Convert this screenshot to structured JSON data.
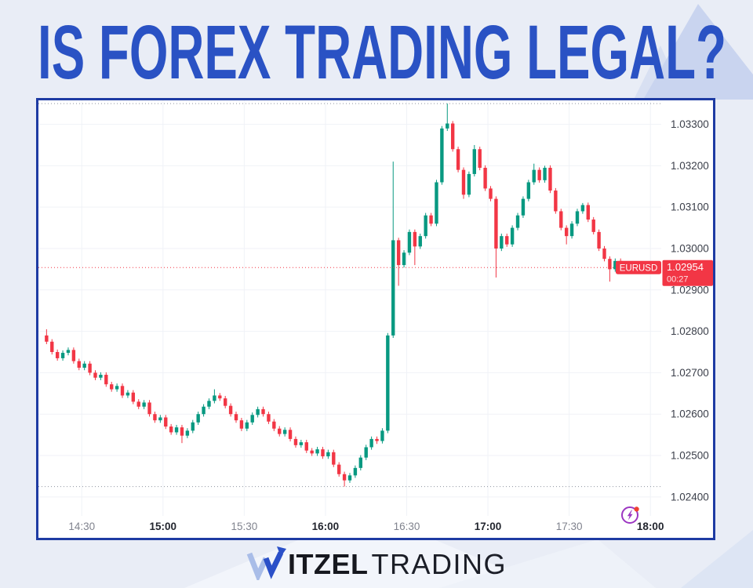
{
  "title": "IS FOREX TRADING LEGAL?",
  "brand": {
    "itzel": "ITZEL",
    "trading": "TRADING"
  },
  "chart_data": {
    "type": "candlestick",
    "symbol": "EURUSD",
    "last_price": "1.02954",
    "bar_countdown": "00:27",
    "session_high": 1.0335,
    "session_low": 1.02425,
    "start_time": "14:17",
    "interval_minutes": 2,
    "y_axis": {
      "top": 1.03356,
      "bottom": 1.02358
    },
    "y_ticks": [
      {
        "label": "1.03300",
        "value": 1.033
      },
      {
        "label": "1.03200",
        "value": 1.032
      },
      {
        "label": "1.03100",
        "value": 1.031
      },
      {
        "label": "1.03000",
        "value": 1.03
      },
      {
        "label": "1.02900",
        "value": 1.029
      },
      {
        "label": "1.02800",
        "value": 1.028
      },
      {
        "label": "1.02700",
        "value": 1.027
      },
      {
        "label": "1.02600",
        "value": 1.026
      },
      {
        "label": "1.02500",
        "value": 1.025
      },
      {
        "label": "1.02400",
        "value": 1.024
      }
    ],
    "x_ticks": [
      {
        "label": "14:30",
        "minute": 13,
        "major": false
      },
      {
        "label": "15:00",
        "minute": 43,
        "major": true
      },
      {
        "label": "15:30",
        "minute": 73,
        "major": false
      },
      {
        "label": "16:00",
        "minute": 103,
        "major": true
      },
      {
        "label": "16:30",
        "minute": 133,
        "major": false
      },
      {
        "label": "17:00",
        "minute": 163,
        "major": true
      },
      {
        "label": "17:30",
        "minute": 193,
        "major": false
      },
      {
        "label": "18:00",
        "minute": 223,
        "major": true
      }
    ],
    "colors": {
      "up": "#089981",
      "down": "#f23645",
      "accent": "#f23645"
    },
    "candles": [
      [
        1.0279,
        1.02805,
        1.02769,
        1.02775
      ],
      [
        1.02775,
        1.02781,
        1.02744,
        1.0275
      ],
      [
        1.0275,
        1.02756,
        1.02729,
        1.02735
      ],
      [
        1.02735,
        1.02754,
        1.02729,
        1.02748
      ],
      [
        1.02748,
        1.02761,
        1.02742,
        1.02755
      ],
      [
        1.02755,
        1.02761,
        1.02722,
        1.02728
      ],
      [
        1.02728,
        1.02734,
        1.02706,
        1.02712
      ],
      [
        1.02712,
        1.02728,
        1.02706,
        1.02722
      ],
      [
        1.02722,
        1.02728,
        1.02694,
        1.027
      ],
      [
        1.027,
        1.02706,
        1.02682,
        1.02688
      ],
      [
        1.02688,
        1.02701,
        1.02682,
        1.02695
      ],
      [
        1.02695,
        1.02701,
        1.02666,
        1.02672
      ],
      [
        1.02672,
        1.02678,
        1.02654,
        1.0266
      ],
      [
        1.0266,
        1.02674,
        1.02654,
        1.02668
      ],
      [
        1.02668,
        1.02674,
        1.02639,
        1.02645
      ],
      [
        1.02645,
        1.02658,
        1.02639,
        1.02652
      ],
      [
        1.02652,
        1.02658,
        1.02624,
        1.0263
      ],
      [
        1.0263,
        1.02636,
        1.02612,
        1.02618
      ],
      [
        1.02618,
        1.02634,
        1.02612,
        1.02628
      ],
      [
        1.02628,
        1.02634,
        1.02594,
        1.026
      ],
      [
        1.026,
        1.02606,
        1.02579,
        1.02585
      ],
      [
        1.02585,
        1.02598,
        1.02579,
        1.02592
      ],
      [
        1.02592,
        1.02598,
        1.02564,
        1.0257
      ],
      [
        1.0257,
        1.02576,
        1.0255,
        1.02556
      ],
      [
        1.02556,
        1.02574,
        1.0255,
        1.02568
      ],
      [
        1.02568,
        1.02574,
        1.0253,
        1.02548
      ],
      [
        1.02548,
        1.02566,
        1.02542,
        1.0256
      ],
      [
        1.0256,
        1.02586,
        1.02554,
        1.0258
      ],
      [
        1.0258,
        1.02606,
        1.02574,
        1.026
      ],
      [
        1.026,
        1.02624,
        1.02594,
        1.02618
      ],
      [
        1.02618,
        1.02638,
        1.02612,
        1.02632
      ],
      [
        1.02632,
        1.0266,
        1.02626,
        1.02645
      ],
      [
        1.02645,
        1.02651,
        1.02632,
        1.02638
      ],
      [
        1.02638,
        1.02644,
        1.02614,
        1.0262
      ],
      [
        1.0262,
        1.02626,
        1.02594,
        1.026
      ],
      [
        1.026,
        1.02606,
        1.02579,
        1.02585
      ],
      [
        1.02585,
        1.02591,
        1.02559,
        1.02565
      ],
      [
        1.02565,
        1.02586,
        1.02559,
        1.0258
      ],
      [
        1.0258,
        1.02604,
        1.02574,
        1.02598
      ],
      [
        1.02598,
        1.02618,
        1.02592,
        1.02612
      ],
      [
        1.02612,
        1.02618,
        1.02594,
        1.026
      ],
      [
        1.026,
        1.02606,
        1.02576,
        1.02582
      ],
      [
        1.02582,
        1.02588,
        1.02559,
        1.02565
      ],
      [
        1.02565,
        1.02571,
        1.02546,
        1.02552
      ],
      [
        1.02552,
        1.02568,
        1.02546,
        1.02562
      ],
      [
        1.02562,
        1.02568,
        1.02534,
        1.0254
      ],
      [
        1.0254,
        1.02546,
        1.02519,
        1.02525
      ],
      [
        1.02525,
        1.02538,
        1.02519,
        1.02532
      ],
      [
        1.02532,
        1.02538,
        1.02506,
        1.02512
      ],
      [
        1.02512,
        1.02518,
        1.02499,
        1.02505
      ],
      [
        1.02505,
        1.02521,
        1.02499,
        1.02515
      ],
      [
        1.02515,
        1.02521,
        1.02492,
        1.02498
      ],
      [
        1.02498,
        1.02514,
        1.02492,
        1.02508
      ],
      [
        1.02508,
        1.02514,
        1.02472,
        1.02478
      ],
      [
        1.02478,
        1.02484,
        1.02449,
        1.02455
      ],
      [
        1.02455,
        1.02461,
        1.02425,
        1.0244
      ],
      [
        1.0244,
        1.02458,
        1.02434,
        1.02452
      ],
      [
        1.02452,
        1.02476,
        1.02446,
        1.0247
      ],
      [
        1.0247,
        1.02501,
        1.02464,
        1.02495
      ],
      [
        1.02495,
        1.02526,
        1.02489,
        1.0252
      ],
      [
        1.0252,
        1.02546,
        1.02514,
        1.0254
      ],
      [
        1.0254,
        1.02546,
        1.02528,
        1.02535
      ],
      [
        1.02535,
        1.02566,
        1.02529,
        1.0256
      ],
      [
        1.0256,
        1.02796,
        1.02554,
        1.0279
      ],
      [
        1.0279,
        1.0321,
        1.02784,
        1.0302
      ],
      [
        1.0302,
        1.03026,
        1.0291,
        1.0296
      ],
      [
        1.0296,
        1.02996,
        1.02954,
        1.0299
      ],
      [
        1.0299,
        1.03046,
        1.02984,
        1.0304
      ],
      [
        1.0304,
        1.03046,
        1.0296,
        1.03005
      ],
      [
        1.03005,
        1.03036,
        1.02999,
        1.0303
      ],
      [
        1.0303,
        1.03086,
        1.03024,
        1.0308
      ],
      [
        1.0308,
        1.03086,
        1.03054,
        1.0306
      ],
      [
        1.0306,
        1.03166,
        1.03054,
        1.0316
      ],
      [
        1.0316,
        1.03296,
        1.03154,
        1.0329
      ],
      [
        1.0329,
        1.0335,
        1.03284,
        1.03302
      ],
      [
        1.03302,
        1.03308,
        1.03234,
        1.0324
      ],
      [
        1.0324,
        1.03246,
        1.03184,
        1.0319
      ],
      [
        1.0319,
        1.03196,
        1.0312,
        1.0313
      ],
      [
        1.0313,
        1.03186,
        1.03124,
        1.0318
      ],
      [
        1.0318,
        1.0325,
        1.03174,
        1.0324
      ],
      [
        1.0324,
        1.03246,
        1.03189,
        1.03195
      ],
      [
        1.03195,
        1.03201,
        1.03139,
        1.03145
      ],
      [
        1.03145,
        1.03151,
        1.03114,
        1.0312
      ],
      [
        1.0312,
        1.03126,
        1.0293,
        1.03
      ],
      [
        1.03,
        1.03036,
        1.02994,
        1.0303
      ],
      [
        1.0303,
        1.03036,
        1.03004,
        1.0301
      ],
      [
        1.0301,
        1.03056,
        1.03004,
        1.0305
      ],
      [
        1.0305,
        1.03086,
        1.03044,
        1.0308
      ],
      [
        1.0308,
        1.03126,
        1.03074,
        1.0312
      ],
      [
        1.0312,
        1.03166,
        1.03114,
        1.0316
      ],
      [
        1.0316,
        1.03205,
        1.03154,
        1.0319
      ],
      [
        1.0319,
        1.03196,
        1.03159,
        1.03165
      ],
      [
        1.03165,
        1.032,
        1.03159,
        1.03195
      ],
      [
        1.03195,
        1.03201,
        1.03134,
        1.0314
      ],
      [
        1.0314,
        1.03146,
        1.03084,
        1.0309
      ],
      [
        1.0309,
        1.03096,
        1.03044,
        1.0305
      ],
      [
        1.0305,
        1.03056,
        1.0301,
        1.0303
      ],
      [
        1.0303,
        1.03066,
        1.03024,
        1.0306
      ],
      [
        1.0306,
        1.03096,
        1.03054,
        1.0309
      ],
      [
        1.0309,
        1.0311,
        1.03084,
        1.03105
      ],
      [
        1.03105,
        1.03111,
        1.03064,
        1.0307
      ],
      [
        1.0307,
        1.03076,
        1.03034,
        1.0304
      ],
      [
        1.0304,
        1.03046,
        1.02994,
        1.03
      ],
      [
        1.03,
        1.03006,
        1.02969,
        1.02975
      ],
      [
        1.02975,
        1.02981,
        1.0292,
        1.0295
      ],
      [
        1.0295,
        1.02976,
        1.02944,
        1.0297
      ],
      [
        1.0297,
        1.02976,
        1.02939,
        1.02945
      ],
      [
        1.02945,
        1.0296,
        1.02939,
        1.02954
      ]
    ]
  }
}
